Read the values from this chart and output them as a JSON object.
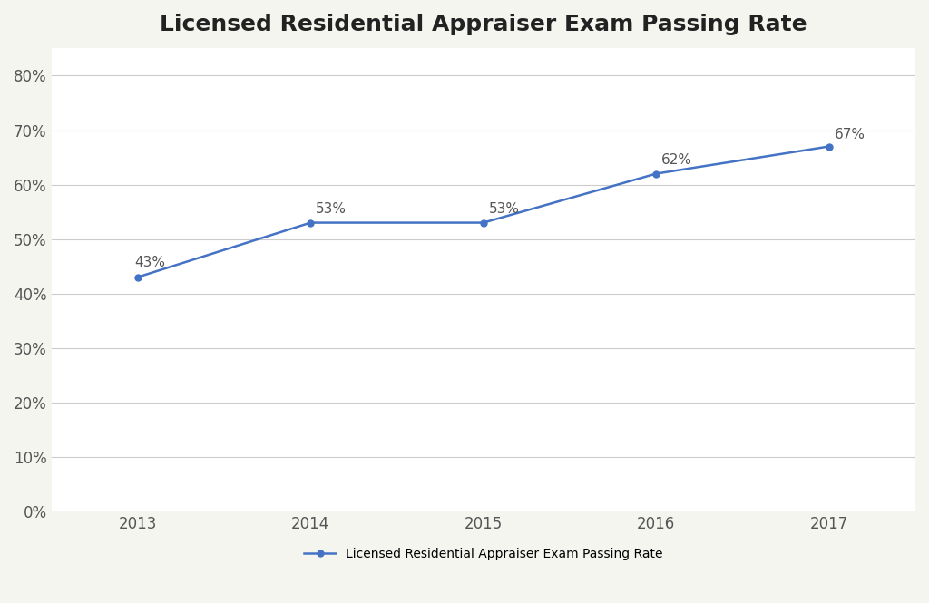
{
  "title": "Licensed Residential Appraiser Exam Passing Rate",
  "years": [
    2013,
    2014,
    2015,
    2016,
    2017
  ],
  "values": [
    0.43,
    0.53,
    0.53,
    0.62,
    0.67
  ],
  "labels": [
    "43%",
    "53%",
    "53%",
    "62%",
    "67%"
  ],
  "line_color": "#4472C4",
  "marker": "o",
  "marker_size": 5,
  "line_width": 1.8,
  "ylim": [
    0,
    0.85
  ],
  "yticks": [
    0.0,
    0.1,
    0.2,
    0.3,
    0.4,
    0.5,
    0.6,
    0.7,
    0.8
  ],
  "ytick_labels": [
    "0%",
    "10%",
    "20%",
    "30%",
    "40%",
    "50%",
    "60%",
    "70%",
    "80%"
  ],
  "xlim": [
    2012.5,
    2017.5
  ],
  "title_fontsize": 18,
  "tick_fontsize": 12,
  "label_fontsize": 11,
  "legend_label": "Licensed Residential Appraiser Exam Passing Rate",
  "background_color": "#f5f5f0",
  "plot_bg_color": "#ffffff",
  "grid_color": "#cccccc"
}
